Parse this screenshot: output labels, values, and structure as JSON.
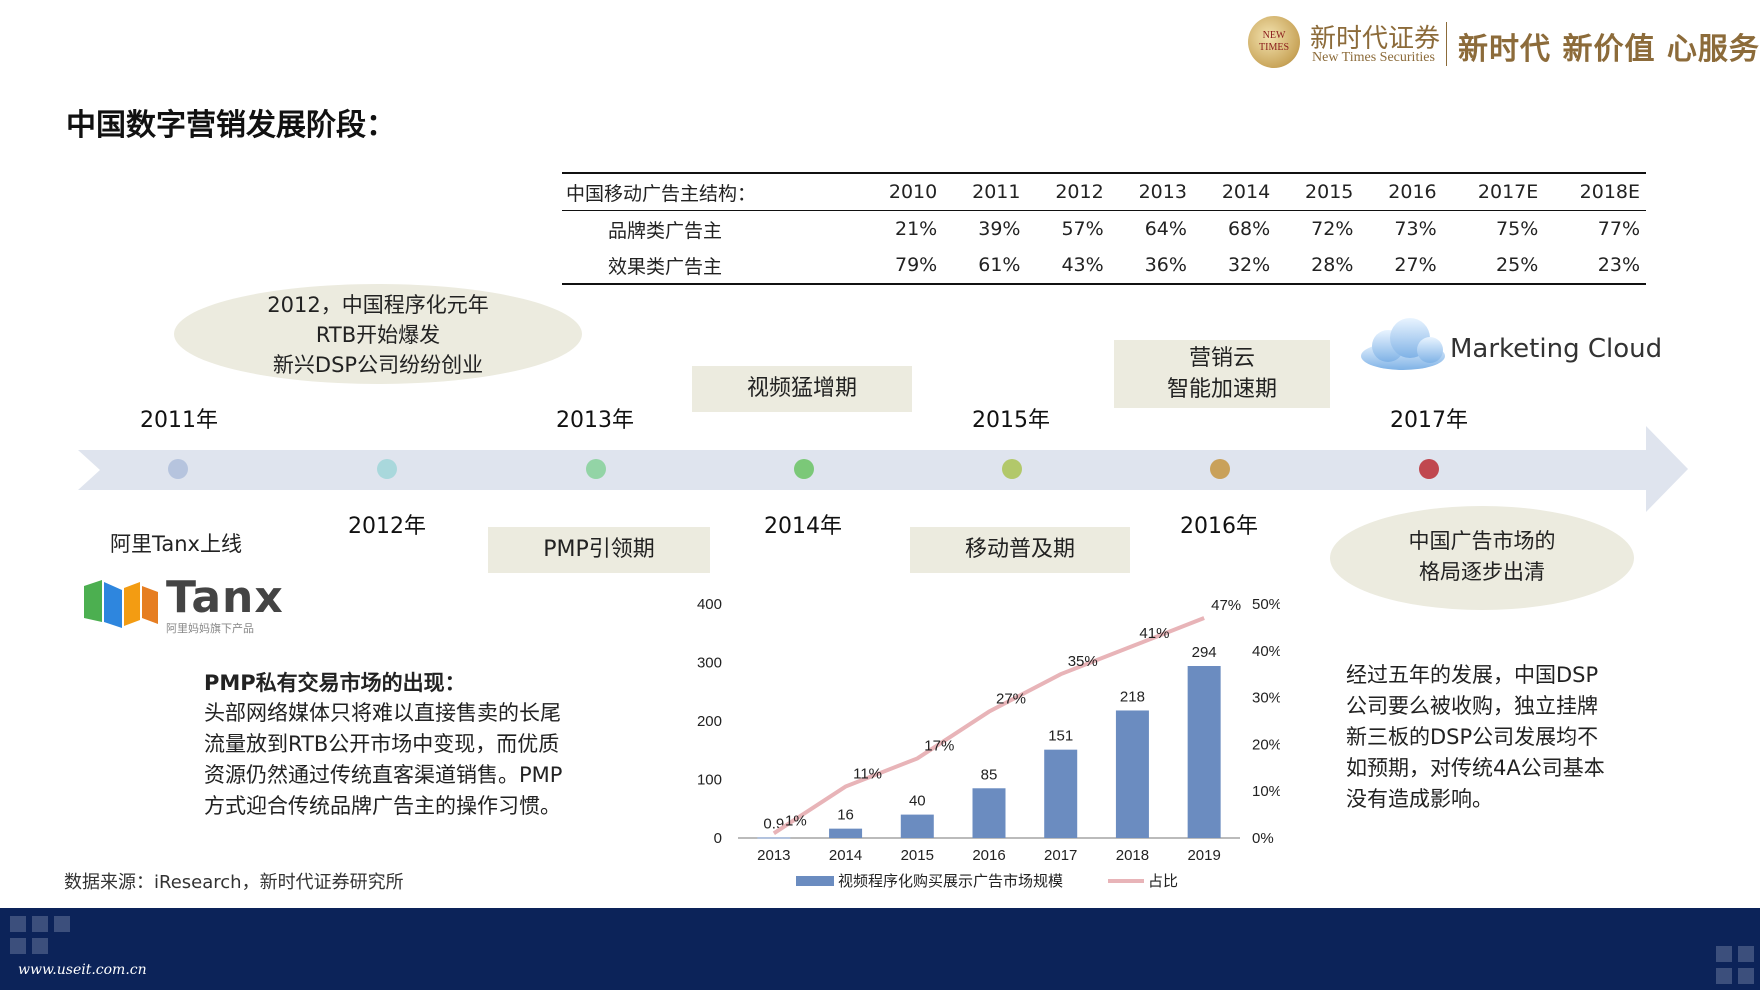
{
  "header": {
    "logo_line1": "NEW",
    "logo_line2": "TIMES",
    "brand_cn": "新时代证券",
    "brand_en": "New Times Securities",
    "slogan": "新时代 新价值 心服务"
  },
  "title": "中国数字营销发展阶段：",
  "table": {
    "header_label": "中国移动广告主结构：",
    "years": [
      "2010",
      "2011",
      "2012",
      "2013",
      "2014",
      "2015",
      "2016",
      "2017E",
      "2018E"
    ],
    "rows": [
      {
        "label": "品牌类广告主",
        "values": [
          "21%",
          "39%",
          "57%",
          "64%",
          "68%",
          "72%",
          "73%",
          "75%",
          "77%"
        ]
      },
      {
        "label": "效果类广告主",
        "values": [
          "79%",
          "61%",
          "43%",
          "36%",
          "32%",
          "28%",
          "27%",
          "25%",
          "23%"
        ]
      }
    ]
  },
  "ellipse_2012": [
    "2012，中国程序化元年",
    "RTB开始爆发",
    "新兴DSP公司纷纷创业"
  ],
  "ellipse_2017": [
    "中国广告市场的",
    "格局逐步出清"
  ],
  "phases": {
    "video": "视频猛增期",
    "cloud_1": "营销云",
    "cloud_2": "智能加速期",
    "pmp": "PMP引领期",
    "mobile": "移动普及期"
  },
  "cloud_label": "Marketing Cloud",
  "timeline": {
    "years_top": [
      "2011年",
      "2013年",
      "2015年",
      "2017年"
    ],
    "years_bottom": [
      "2012年",
      "2014年",
      "2016年"
    ],
    "dot_colors": [
      "#b6c4de",
      "#a9d8dc",
      "#93d4a6",
      "#7bc878",
      "#b2c86a",
      "#c9a15a",
      "#c0474f"
    ],
    "bar_color": "#dfe4ee"
  },
  "tanx": {
    "caption": "阿里Tanx上线",
    "logo_text": "Tanx",
    "logo_sub": "阿里妈妈旗下产品"
  },
  "pmp_text": {
    "heading": "PMP私有交易市场的出现：",
    "lines": [
      "头部网络媒体只将难以直接售卖的长尾",
      "流量放到RTB公开市场中变现，而优质",
      "资源仍然通过传统直客渠道销售。PMP",
      "方式迎合传统品牌广告主的操作习惯。"
    ]
  },
  "right_text": [
    "经过五年的发展，中国DSP",
    "公司要么被收购，独立挂牌",
    "新三板的DSP公司发展均不",
    "如预期，对传统4A公司基本",
    "没有造成影响。"
  ],
  "source": "数据来源：iResearch，新时代证券研究所",
  "footer_url": "www.useit.com.cn",
  "chart_data": {
    "type": "bar",
    "categories": [
      "2013",
      "2014",
      "2015",
      "2016",
      "2017",
      "2018",
      "2019"
    ],
    "series": [
      {
        "name": "视频程序化购买展示广告市场规模",
        "type": "bar",
        "values": [
          0.9,
          16,
          40,
          85,
          151,
          218,
          294
        ],
        "labels": [
          "0.9",
          "16",
          "40",
          "85",
          "151",
          "218",
          "294"
        ],
        "color": "#6b8cc0"
      },
      {
        "name": "占比",
        "type": "line",
        "axis": "right",
        "values": [
          1,
          11,
          17,
          27,
          35,
          41,
          47
        ],
        "labels": [
          "1%",
          "11%",
          "17%",
          "27%",
          "35%",
          "41%",
          "47%"
        ],
        "color": "#e8b4b8"
      }
    ],
    "y_left": {
      "ylim": [
        0,
        400
      ],
      "ticks": [
        "0",
        "100",
        "200",
        "300",
        "400"
      ]
    },
    "y_right": {
      "ylim": [
        0,
        50
      ],
      "ticks": [
        "0%",
        "10%",
        "20%",
        "30%",
        "40%",
        "50%"
      ]
    },
    "legend": "bottom"
  }
}
